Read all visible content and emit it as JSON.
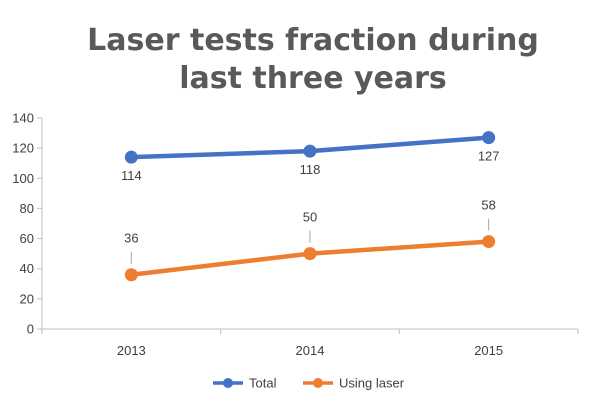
{
  "chart_data": {
    "type": "line",
    "title": "Laser tests fraction during last three years",
    "title_lines": [
      "Laser tests fraction during",
      "last three years"
    ],
    "categories": [
      "2013",
      "2014",
      "2015"
    ],
    "series": [
      {
        "name": "Total",
        "values": [
          114,
          118,
          127
        ],
        "color": "#4472C4",
        "label_position": "below"
      },
      {
        "name": "Using laser",
        "values": [
          36,
          50,
          58
        ],
        "color": "#ED7D31",
        "label_position": "above"
      }
    ],
    "ylim": [
      0,
      140
    ],
    "yticks": [
      0,
      20,
      40,
      60,
      80,
      100,
      120,
      140
    ],
    "grid": false,
    "legend": "bottom",
    "xlabel": "",
    "ylabel": ""
  }
}
